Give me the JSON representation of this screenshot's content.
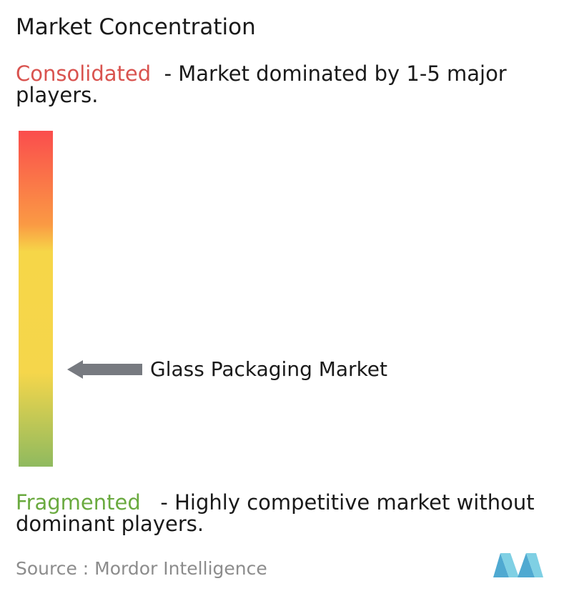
{
  "header": {
    "title": "Market Concentration"
  },
  "scale": {
    "consolidated_label": "Consolidated",
    "consolidated_desc": "- Market dominated by 1-5 major players.",
    "fragmented_label": "Fragmented",
    "fragmented_desc": "- Highly competitive market without dominant players.",
    "gradient_colors": [
      "#fa4d4d",
      "#fa9a44",
      "#f6d648",
      "#f5d64b",
      "#8fba5f"
    ]
  },
  "chart_data": {
    "type": "scale",
    "title": "Market Concentration",
    "scale_top": "Consolidated",
    "scale_bottom": "Fragmented",
    "marker": {
      "label": "Glass Packaging Market",
      "position_fraction_from_top": 0.71
    }
  },
  "footer": {
    "source": "Source :  Mordor Intelligence",
    "logo_icon": "mordor-intelligence-logo",
    "logo_color": "#5fb8d9"
  },
  "colors": {
    "consolidated": "#d9534f",
    "fragmented": "#6aaa3f",
    "arrow": "#777a80"
  }
}
